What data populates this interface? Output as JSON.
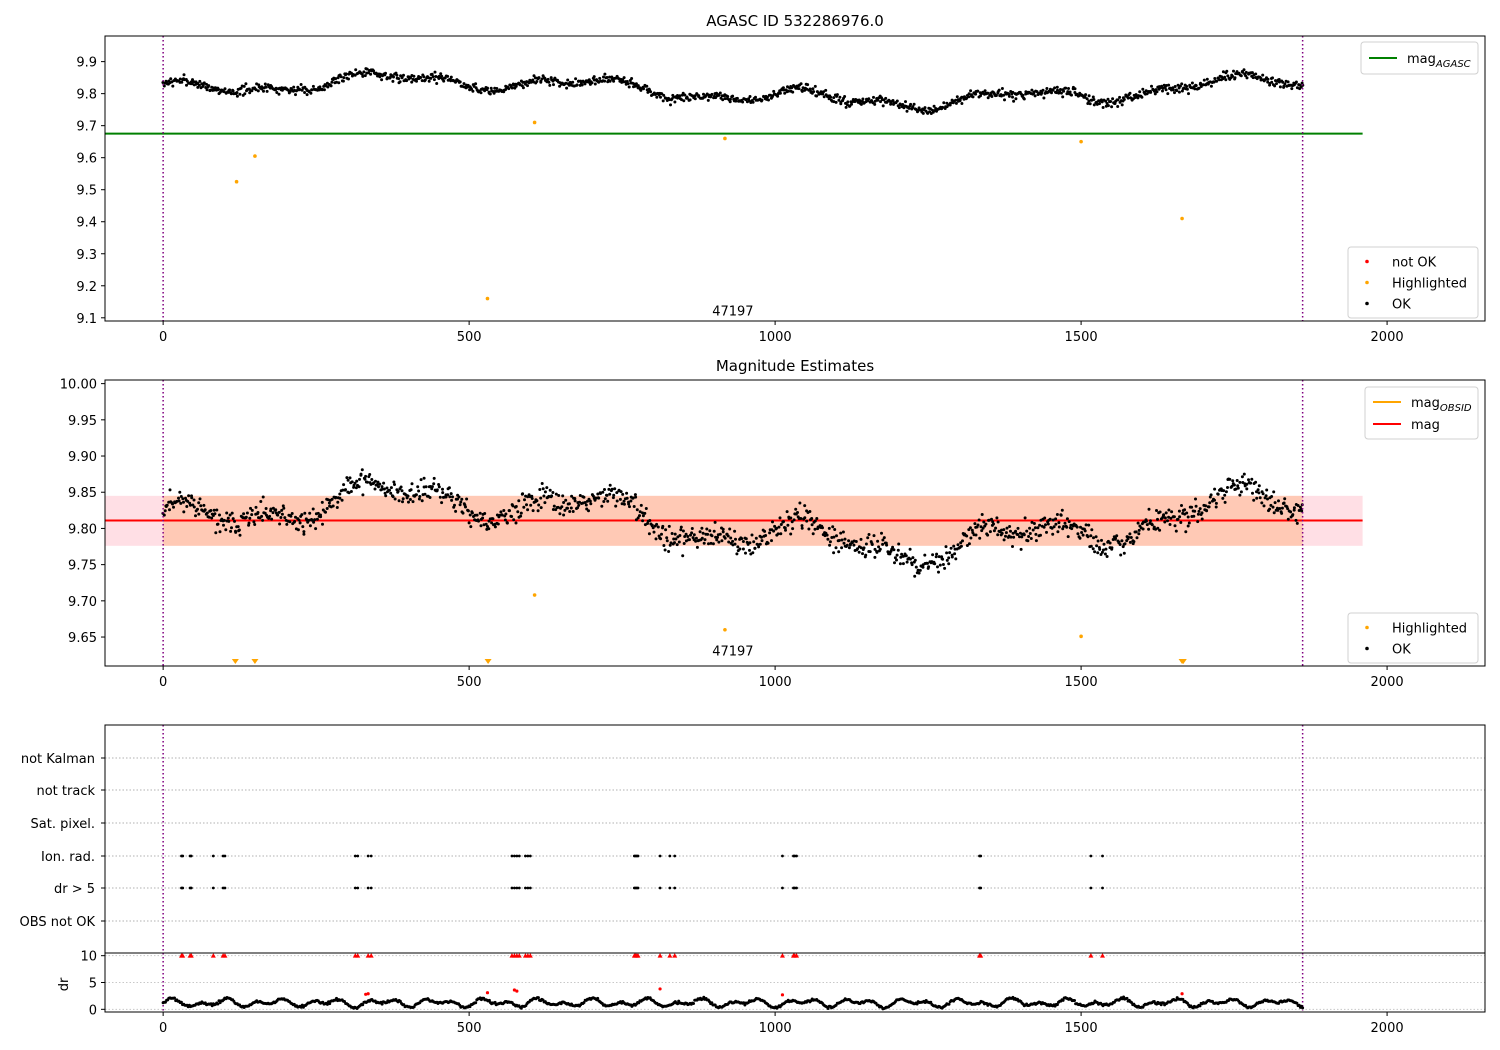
{
  "chart_data": [
    {
      "id": "top",
      "type": "scatter",
      "title": "AGASC ID 532286976.0",
      "xlim": [
        -95,
        2160
      ],
      "ylim": [
        9.09,
        9.98
      ],
      "xticks": [
        0,
        500,
        1000,
        1500,
        2000
      ],
      "yticks": [
        9.1,
        9.2,
        9.3,
        9.4,
        9.5,
        9.6,
        9.7,
        9.8,
        9.9
      ],
      "ytick_decimals": 1,
      "vlines": [
        0,
        1862
      ],
      "annotation": {
        "text": "47197",
        "x": 931,
        "y": 9.12
      },
      "hlines": [
        {
          "y": 9.675,
          "x0": -95,
          "x1": 1960,
          "color": "#008000"
        }
      ],
      "ok_series": {
        "n": 1300,
        "x0": 0,
        "x1": 1862,
        "seed": 7,
        "scatter": 0.014
      },
      "highlighted": {
        "name": "Highlighted",
        "color": "#ffa500",
        "x": [
          120,
          150,
          530,
          607,
          918,
          1500,
          1665
        ],
        "y": [
          9.525,
          9.605,
          9.16,
          9.71,
          9.66,
          9.65,
          9.41
        ]
      },
      "not_ok": {
        "name": "not OK",
        "color": "#ff0000",
        "x": [],
        "y": []
      },
      "legend_upper": {
        "location": "upper-right",
        "entries": [
          {
            "kind": "line",
            "color": "#008000",
            "label": "mag",
            "sub": "AGASC"
          }
        ]
      },
      "legend_lower": {
        "location": "lower-right",
        "entries": [
          {
            "kind": "dot",
            "color": "#ff0000",
            "label": "not OK"
          },
          {
            "kind": "dot",
            "color": "#ffa500",
            "label": "Highlighted"
          },
          {
            "kind": "dot",
            "color": "#000000",
            "label": "OK"
          }
        ]
      }
    },
    {
      "id": "mid",
      "type": "scatter",
      "title": "Magnitude Estimates",
      "xlim": [
        -95,
        2160
      ],
      "ylim": [
        9.61,
        10.005
      ],
      "xticks": [
        0,
        500,
        1000,
        1500,
        2000
      ],
      "yticks": [
        9.65,
        9.7,
        9.75,
        9.8,
        9.85,
        9.9,
        9.95,
        10.0
      ],
      "ytick_decimals": 2,
      "vlines": [
        0,
        1862
      ],
      "annotation": {
        "text": "47197",
        "x": 931,
        "y": 9.63
      },
      "band": {
        "y0": 9.776,
        "y1": 9.845,
        "x0": -95,
        "x1": 1960
      },
      "hlines": [
        {
          "y": 9.811,
          "x0": -95,
          "x1": 1960,
          "color": "#ff0000"
        }
      ],
      "ok_series": {
        "n": 1300,
        "x0": 0,
        "x1": 1862,
        "seed": 11,
        "scatter": 0.016
      },
      "highlighted": {
        "name": "Highlighted",
        "color": "#ffa500",
        "x": [
          607,
          918,
          1500
        ],
        "y": [
          9.708,
          9.66,
          9.651
        ]
      },
      "out_of_range_markers": {
        "color": "#ffa500",
        "x": [
          118,
          150,
          531,
          1665,
          1667
        ]
      },
      "legend_upper": {
        "location": "upper-right",
        "entries": [
          {
            "kind": "line",
            "color": "#ffa500",
            "label": "mag",
            "sub": "OBSID"
          },
          {
            "kind": "line",
            "color": "#ff0000",
            "label": "mag"
          }
        ]
      },
      "legend_lower": {
        "location": "lower-right",
        "entries": [
          {
            "kind": "dot",
            "color": "#ffa500",
            "label": "Highlighted"
          },
          {
            "kind": "dot",
            "color": "#000000",
            "label": "OK"
          }
        ]
      }
    },
    {
      "id": "flags",
      "type": "scatter",
      "xlim": [
        -95,
        2160
      ],
      "xticks": [
        0,
        500,
        1000,
        1500,
        2000
      ],
      "vlines": [
        0,
        1862
      ],
      "flag_rows": [
        "not Kalman",
        "not track",
        "Sat. pixel.",
        "Ion. rad.",
        "dr > 5",
        "OBS not OK"
      ],
      "flag_events": {
        "Ion. rad.": [
          30,
          32,
          44,
          46,
          82,
          98,
          101,
          314,
          318,
          335,
          340,
          570,
          574,
          578,
          582,
          592,
          596,
          600,
          770,
          772,
          774,
          776,
          812,
          828,
          836,
          1012,
          1030,
          1032,
          1035,
          1334,
          1336,
          1516,
          1535
        ],
        "dr > 5": [
          30,
          32,
          44,
          46,
          82,
          98,
          101,
          314,
          318,
          335,
          340,
          570,
          574,
          578,
          582,
          592,
          596,
          600,
          770,
          772,
          774,
          776,
          812,
          828,
          836,
          1012,
          1030,
          1032,
          1035,
          1334,
          1336,
          1516,
          1535
        ]
      },
      "dr_panel": {
        "ylabel": "dr",
        "ylim": [
          -0.5,
          10.5
        ],
        "yticks": [
          0,
          5,
          10
        ],
        "n": 1000,
        "seed": 5,
        "red_cap_x": [
          30,
          32,
          44,
          46,
          82,
          98,
          101,
          314,
          318,
          335,
          340,
          570,
          574,
          578,
          582,
          592,
          596,
          600,
          770,
          772,
          774,
          776,
          812,
          828,
          836,
          1012,
          1030,
          1032,
          1035,
          1334,
          1336,
          1516,
          1535
        ],
        "red_points": [
          {
            "x": 331,
            "y": 2.8
          },
          {
            "x": 335,
            "y": 2.9
          },
          {
            "x": 530,
            "y": 3.1
          },
          {
            "x": 574,
            "y": 3.6
          },
          {
            "x": 578,
            "y": 3.4
          },
          {
            "x": 812,
            "y": 3.8
          },
          {
            "x": 1012,
            "y": 2.7
          },
          {
            "x": 1665,
            "y": 2.9
          }
        ]
      }
    }
  ]
}
